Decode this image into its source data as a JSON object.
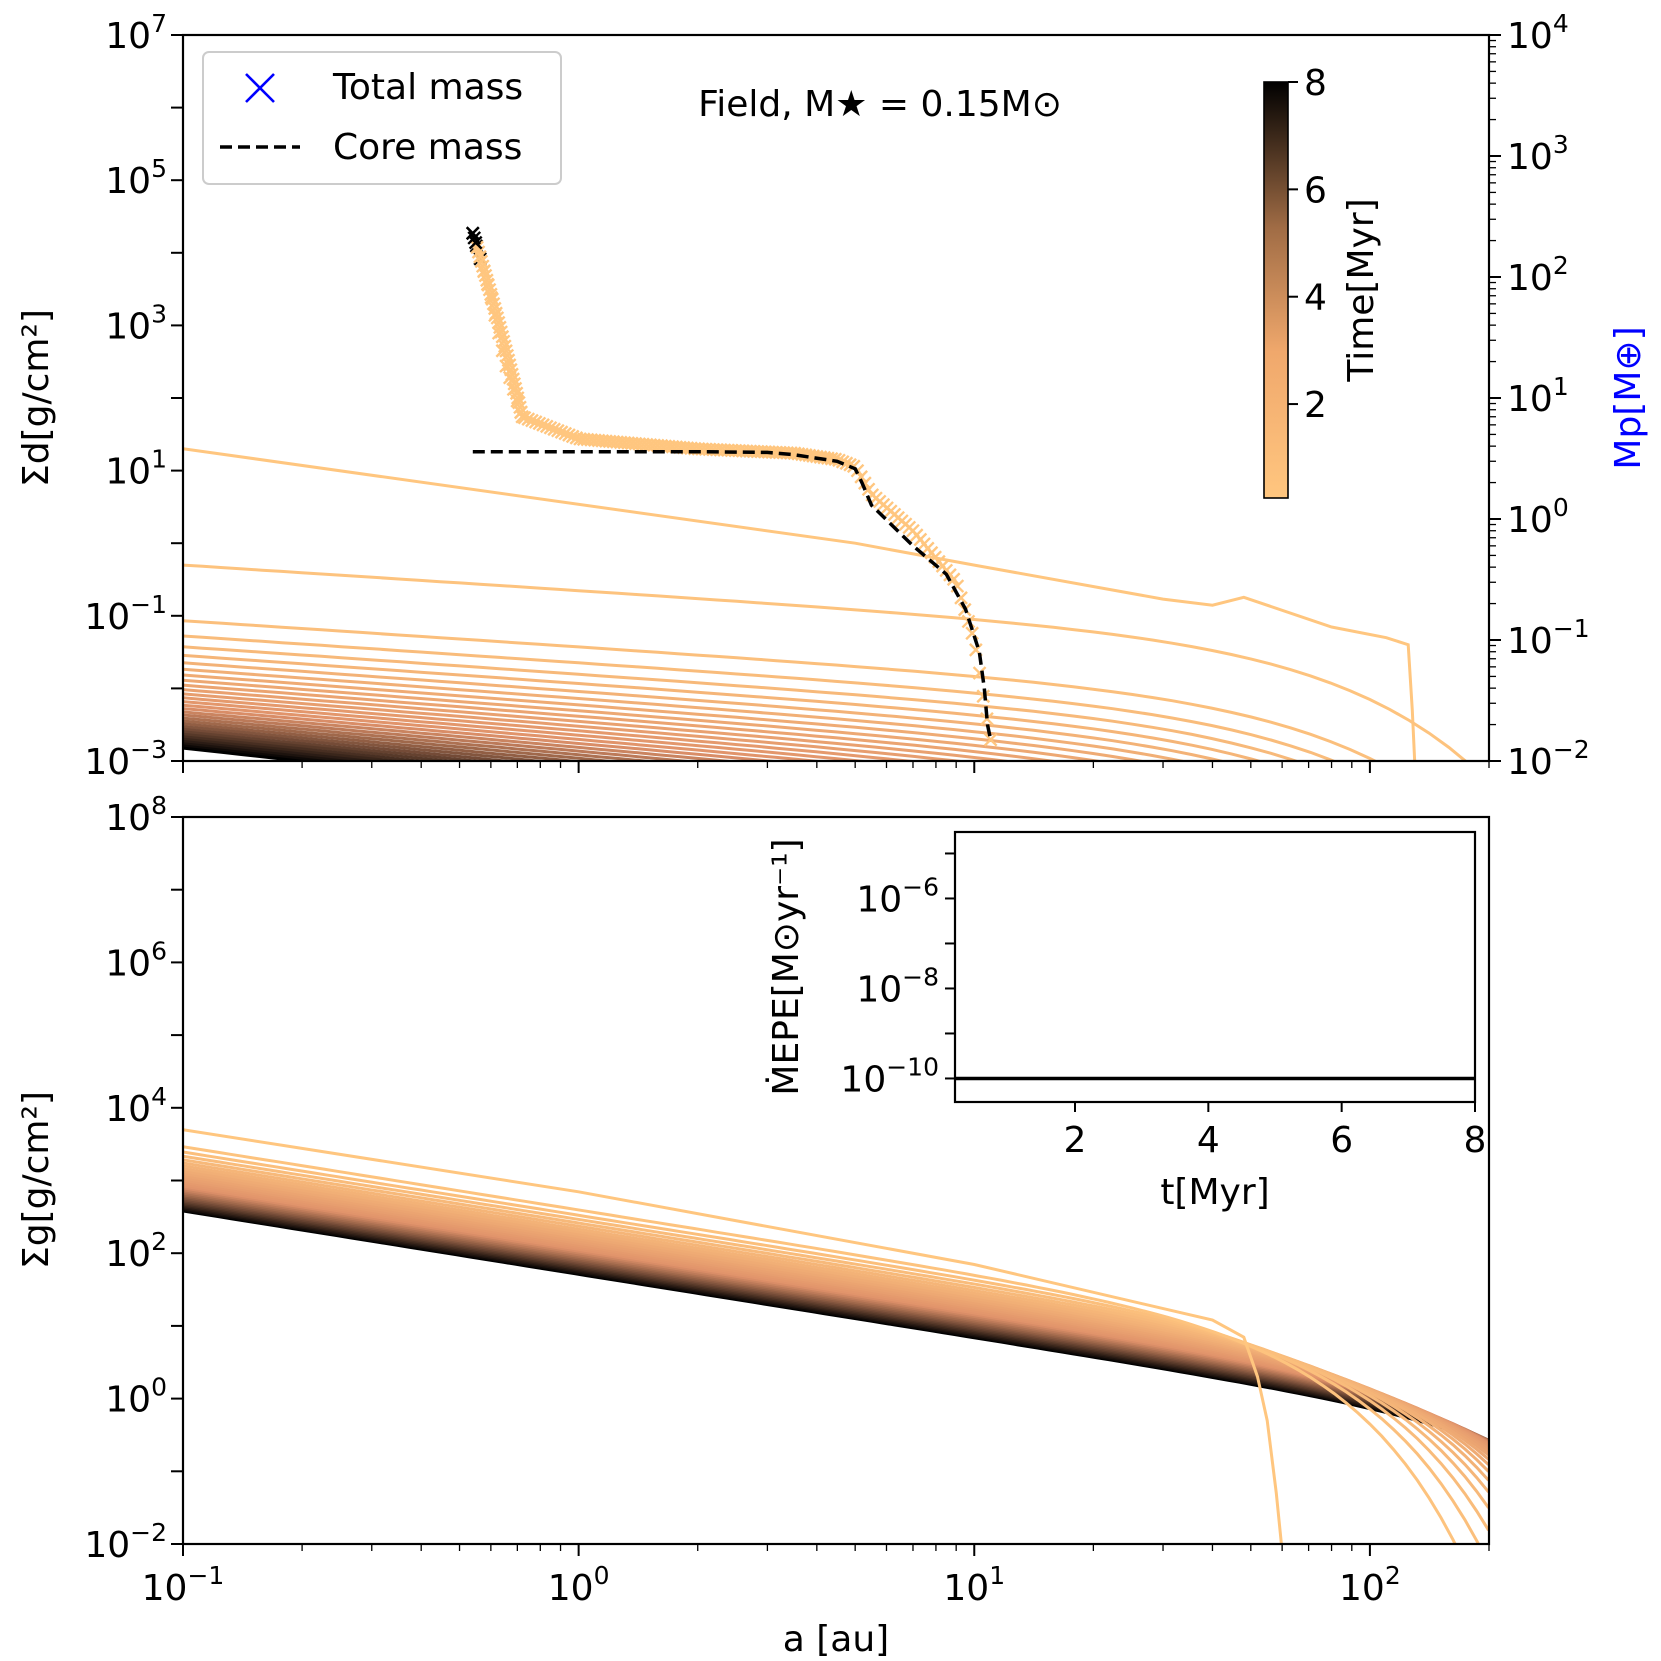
{
  "chart_data": [
    {
      "type": "line",
      "panel": "top",
      "annotation": "Field, M★ = 0.15M⊙",
      "xlabel": "",
      "ylabel": "Σd[g/cm²]",
      "xscale": "log",
      "yscale": "log",
      "xlim": [
        0.1,
        200
      ],
      "ylim": [
        0.001,
        10000000
      ],
      "y_ticks": [
        {
          "base": "10",
          "exp": "7",
          "value": 10000000
        },
        {
          "base": "10",
          "exp": "5",
          "value": 100000
        },
        {
          "base": "10",
          "exp": "3",
          "value": 1000
        },
        {
          "base": "10",
          "exp": "1",
          "value": 10
        },
        {
          "base": "10",
          "exp": "−1",
          "value": 0.1
        },
        {
          "base": "10",
          "exp": "−3",
          "value": 0.001
        }
      ],
      "right_axis": {
        "label": "Mp[M⊕]",
        "label_color": "#0000ff",
        "scale": "log",
        "ylim": [
          0.01,
          10000
        ],
        "ticks": [
          {
            "base": "10",
            "exp": "4",
            "value": 10000
          },
          {
            "base": "10",
            "exp": "3",
            "value": 1000
          },
          {
            "base": "10",
            "exp": "2",
            "value": 100
          },
          {
            "base": "10",
            "exp": "1",
            "value": 10
          },
          {
            "base": "10",
            "exp": "0",
            "value": 1
          },
          {
            "base": "10",
            "exp": "−1",
            "value": 0.1
          },
          {
            "base": "10",
            "exp": "−2",
            "value": 0.01
          }
        ]
      },
      "legend": {
        "position": "top-left",
        "entries": [
          {
            "label": "Total mass",
            "marker": "x",
            "color": "#0000ff"
          },
          {
            "label": "Core mass",
            "style": "dashed",
            "color": "#000000"
          }
        ]
      },
      "colorbar": {
        "label": "Time[Myr]",
        "range": [
          0.25,
          8
        ],
        "ticks": [
          "2",
          "4",
          "6",
          "8"
        ],
        "tick_values": [
          2,
          4,
          6,
          8
        ],
        "colormap": "copper_r",
        "color_low": "#ffc67f",
        "color_high": "#000000",
        "position": "top-right"
      },
      "profiles_note": "32 dust surface density profiles, one per time step",
      "series": [
        {
          "time_myr": 0.25,
          "points": [
            [
              0.1,
              20
            ],
            [
              5,
              1.0
            ],
            [
              10,
              0.5
            ],
            [
              30,
              0.17
            ],
            [
              40,
              0.14
            ],
            [
              48,
              0.18
            ],
            [
              80,
              0.07
            ],
            [
              110,
              0.05
            ],
            [
              125,
              0.04
            ],
            [
              128,
              0.005
            ],
            [
              130,
              0.0008
            ]
          ]
        },
        {
          "time_myr": 0.5,
          "points": [
            [
              0.1,
              0.25
            ],
            [
              1,
              0.1
            ],
            [
              10,
              0.015
            ],
            [
              30,
              0.0035
            ],
            [
              60,
              0.001
            ]
          ]
        },
        {
          "time_myr": 0.75,
          "points": [
            [
              0.1,
              0.1
            ],
            [
              1,
              0.045
            ],
            [
              10,
              0.006
            ],
            [
              30,
              0.0018
            ],
            [
              50,
              0.001
            ]
          ]
        },
        {
          "time_myr": 8.0,
          "points": [
            [
              0.1,
              0.0025
            ],
            [
              0.5,
              0.001
            ]
          ]
        }
      ],
      "total_mass_track": {
        "marker": "x",
        "points_mearth": [
          [
            0.54,
            230
          ],
          [
            0.6,
            70
          ],
          [
            0.65,
            20
          ],
          [
            0.72,
            7
          ],
          [
            1.0,
            4.6
          ],
          [
            2.0,
            3.8
          ],
          [
            3.5,
            3.5
          ],
          [
            4.5,
            3.1
          ],
          [
            5.0,
            2.7
          ],
          [
            5.5,
            1.6
          ],
          [
            7.0,
            0.8
          ],
          [
            9.0,
            0.3
          ],
          [
            10.0,
            0.1
          ],
          [
            10.7,
            0.025
          ],
          [
            11.0,
            0.015
          ]
        ]
      },
      "core_mass_track": {
        "style": "dashed",
        "points_mearth": [
          [
            0.54,
            3.6
          ],
          [
            1.0,
            3.6
          ],
          [
            2.0,
            3.6
          ],
          [
            3.0,
            3.55
          ],
          [
            3.5,
            3.4
          ],
          [
            4.5,
            3.0
          ],
          [
            5.0,
            2.6
          ],
          [
            5.2,
            2.0
          ],
          [
            5.5,
            1.3
          ],
          [
            7.0,
            0.6
          ],
          [
            8.5,
            0.35
          ],
          [
            9.5,
            0.18
          ],
          [
            10.3,
            0.08
          ],
          [
            10.6,
            0.04
          ],
          [
            10.8,
            0.02
          ],
          [
            11.0,
            0.015
          ]
        ]
      }
    },
    {
      "type": "line",
      "panel": "bottom",
      "xlabel": "a [au]",
      "ylabel": "Σg[g/cm²]",
      "xscale": "log",
      "yscale": "log",
      "xlim": [
        0.1,
        200
      ],
      "ylim": [
        0.01,
        100000000
      ],
      "x_ticks": [
        {
          "base": "10",
          "exp": "−1",
          "value": 0.1
        },
        {
          "base": "10",
          "exp": "0",
          "value": 1
        },
        {
          "base": "10",
          "exp": "1",
          "value": 10
        },
        {
          "base": "10",
          "exp": "2",
          "value": 100
        }
      ],
      "y_ticks": [
        {
          "base": "10",
          "exp": "8",
          "value": 100000000
        },
        {
          "base": "10",
          "exp": "6",
          "value": 1000000
        },
        {
          "base": "10",
          "exp": "4",
          "value": 10000
        },
        {
          "base": "10",
          "exp": "2",
          "value": 100
        },
        {
          "base": "10",
          "exp": "0",
          "value": 1
        },
        {
          "base": "10",
          "exp": "−2",
          "value": 0.01
        }
      ],
      "profiles_note": "32 gas surface density profiles, one per time step",
      "series": [
        {
          "time_myr": 0.25,
          "points": [
            [
              0.1,
              5000
            ],
            [
              1,
              700
            ],
            [
              10,
              70
            ],
            [
              40,
              12
            ],
            [
              48,
              7
            ],
            [
              52,
              2
            ],
            [
              55,
              0.5
            ],
            [
              58,
              0.05
            ],
            [
              60,
              0.008
            ]
          ]
        },
        {
          "time_myr": 8.0,
          "points": [
            [
              0.1,
              380
            ],
            [
              1,
              60
            ],
            [
              10,
              7.5
            ],
            [
              50,
              1.2
            ],
            [
              100,
              0.4
            ],
            [
              150,
              0.16
            ],
            [
              200,
              0.06
            ]
          ]
        }
      ],
      "inset": {
        "type": "line",
        "xlabel": "t[Myr]",
        "ylabel": "ṀEPE[M⊙yr⁻¹]",
        "xscale": "linear",
        "yscale": "log",
        "xlim": [
          0.2,
          8
        ],
        "ylim": [
          3e-11,
          3e-05
        ],
        "x_ticks": [
          "2",
          "4",
          "6",
          "8"
        ],
        "x_tick_values": [
          2,
          4,
          6,
          8
        ],
        "y_ticks": [
          {
            "base": "10",
            "exp": "−6",
            "value": 1e-06
          },
          {
            "base": "10",
            "exp": "−8",
            "value": 1e-08
          },
          {
            "base": "10",
            "exp": "−10",
            "value": 1e-10
          }
        ],
        "series": [
          {
            "x": [
              0.2,
              8
            ],
            "y": [
              1e-10,
              1e-10
            ],
            "color": "#000000"
          }
        ]
      }
    }
  ]
}
